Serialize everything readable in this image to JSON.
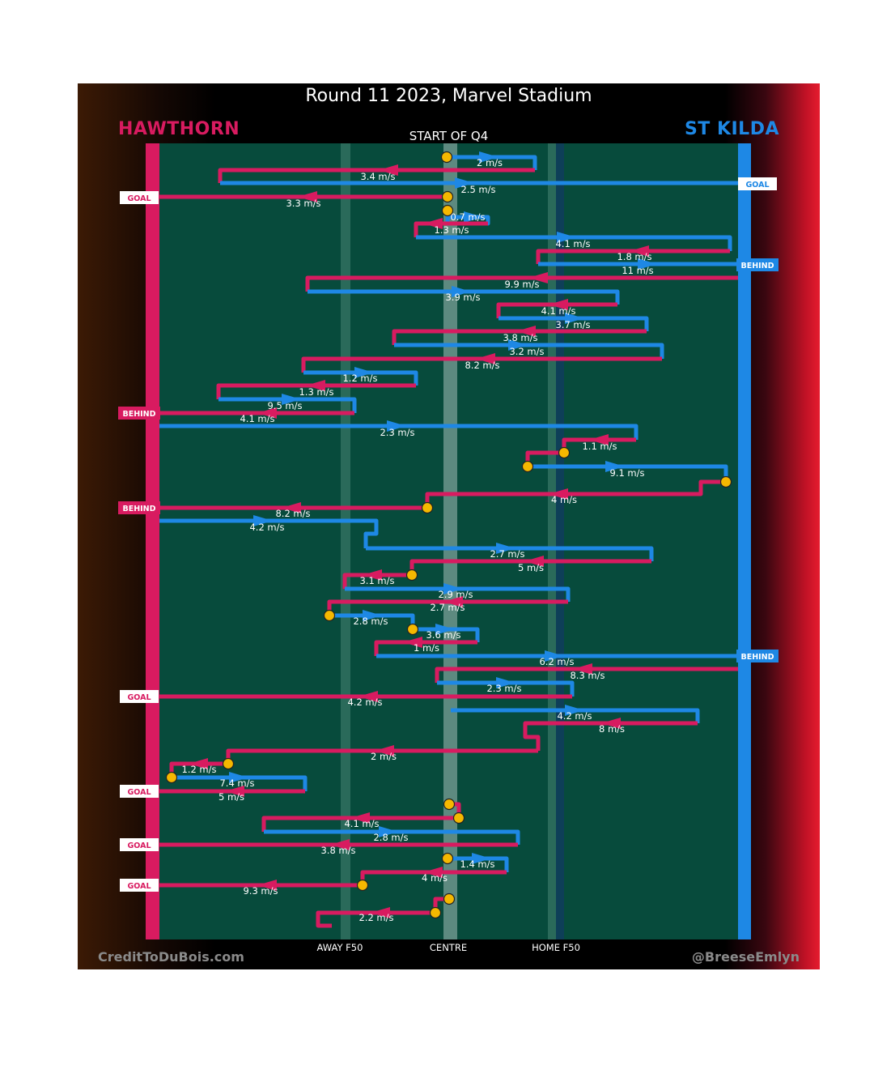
{
  "title": "Round 11 2023, Marvel Stadium",
  "home_team": "HAWTHORN",
  "away_team": "ST KILDA",
  "start_label": "START OF Q4",
  "credit_left": "CreditToDuBois.com",
  "credit_right": "@BreeseEmlyn",
  "colors": {
    "home": "#d81b60",
    "away": "#1e88e5",
    "field": "#074b3c",
    "marker": "#f5b800"
  },
  "chart_data": {
    "type": "line",
    "title": "Round 11 2023, Marvel Stadium",
    "subtitle": "START OF Q4",
    "x_ticks": [
      "AWAY F50",
      "CENTRE",
      "HOME F50"
    ],
    "teams": [
      "HAWTHORN",
      "ST KILDA"
    ],
    "grid": false,
    "chains": [
      {
        "team": "ST KILDA",
        "speed": "2 m/s"
      },
      {
        "team": "HAWTHORN",
        "speed": "3.4 m/s"
      },
      {
        "team": "ST KILDA",
        "speed": "2.5 m/s",
        "outcome": "GOAL"
      },
      {
        "team": "HAWTHORN",
        "speed": "3.3 m/s",
        "outcome": "GOAL"
      },
      {
        "team": "ST KILDA",
        "speed": "0.7 m/s"
      },
      {
        "team": "HAWTHORN",
        "speed": "1.3 m/s"
      },
      {
        "team": "ST KILDA",
        "speed": "4.1 m/s"
      },
      {
        "team": "HAWTHORN",
        "speed": "1.8 m/s"
      },
      {
        "team": "ST KILDA",
        "speed": "11 m/s",
        "outcome": "BEHIND"
      },
      {
        "team": "HAWTHORN",
        "speed": "9.9 m/s"
      },
      {
        "team": "ST KILDA",
        "speed": "3.9 m/s"
      },
      {
        "team": "HAWTHORN",
        "speed": "4.1 m/s"
      },
      {
        "team": "ST KILDA",
        "speed": "3.7 m/s"
      },
      {
        "team": "HAWTHORN",
        "speed": "3.8 m/s"
      },
      {
        "team": "ST KILDA",
        "speed": "3.2 m/s"
      },
      {
        "team": "HAWTHORN",
        "speed": "8.2 m/s"
      },
      {
        "team": "ST KILDA",
        "speed": "1.2 m/s"
      },
      {
        "team": "HAWTHORN",
        "speed": "1.3 m/s"
      },
      {
        "team": "ST KILDA",
        "speed": "9.5 m/s"
      },
      {
        "team": "HAWTHORN",
        "speed": "4.1 m/s",
        "outcome": "BEHIND"
      },
      {
        "team": "ST KILDA",
        "speed": "2.3 m/s"
      },
      {
        "team": "HAWTHORN",
        "speed": "1.1 m/s"
      },
      {
        "team": "ST KILDA",
        "speed": "9.1 m/s"
      },
      {
        "team": "HAWTHORN",
        "speed": "4 m/s"
      },
      {
        "team": "HAWTHORN",
        "speed": "8.2 m/s",
        "outcome": "BEHIND"
      },
      {
        "team": "ST KILDA",
        "speed": "4.2 m/s"
      },
      {
        "team": "ST KILDA",
        "speed": "2.7 m/s"
      },
      {
        "team": "HAWTHORN",
        "speed": "5 m/s"
      },
      {
        "team": "HAWTHORN",
        "speed": "3.1 m/s"
      },
      {
        "team": "ST KILDA",
        "speed": "2.9 m/s"
      },
      {
        "team": "HAWTHORN",
        "speed": "2.7 m/s"
      },
      {
        "team": "ST KILDA",
        "speed": "2.8 m/s"
      },
      {
        "team": "ST KILDA",
        "speed": "3.6 m/s"
      },
      {
        "team": "HAWTHORN",
        "speed": "1 m/s"
      },
      {
        "team": "ST KILDA",
        "speed": "6.2 m/s",
        "outcome": "BEHIND"
      },
      {
        "team": "HAWTHORN",
        "speed": "8.3 m/s"
      },
      {
        "team": "ST KILDA",
        "speed": "2.3 m/s"
      },
      {
        "team": "HAWTHORN",
        "speed": "4.2 m/s",
        "outcome": "GOAL"
      },
      {
        "team": "ST KILDA",
        "speed": "4.2 m/s"
      },
      {
        "team": "HAWTHORN",
        "speed": "8 m/s"
      },
      {
        "team": "HAWTHORN",
        "speed": "2 m/s"
      },
      {
        "team": "HAWTHORN",
        "speed": "1.2 m/s"
      },
      {
        "team": "ST KILDA",
        "speed": "7.4 m/s"
      },
      {
        "team": "HAWTHORN",
        "speed": "5 m/s",
        "outcome": "GOAL"
      },
      {
        "team": "HAWTHORN",
        "speed": "4.1 m/s"
      },
      {
        "team": "ST KILDA",
        "speed": "2.8 m/s"
      },
      {
        "team": "HAWTHORN",
        "speed": "3.8 m/s",
        "outcome": "GOAL"
      },
      {
        "team": "ST KILDA",
        "speed": "1.4 m/s"
      },
      {
        "team": "HAWTHORN",
        "speed": "4 m/s"
      },
      {
        "team": "HAWTHORN",
        "speed": "9.3 m/s",
        "outcome": "GOAL"
      },
      {
        "team": "HAWTHORN",
        "speed": "2.2 m/s"
      }
    ]
  }
}
